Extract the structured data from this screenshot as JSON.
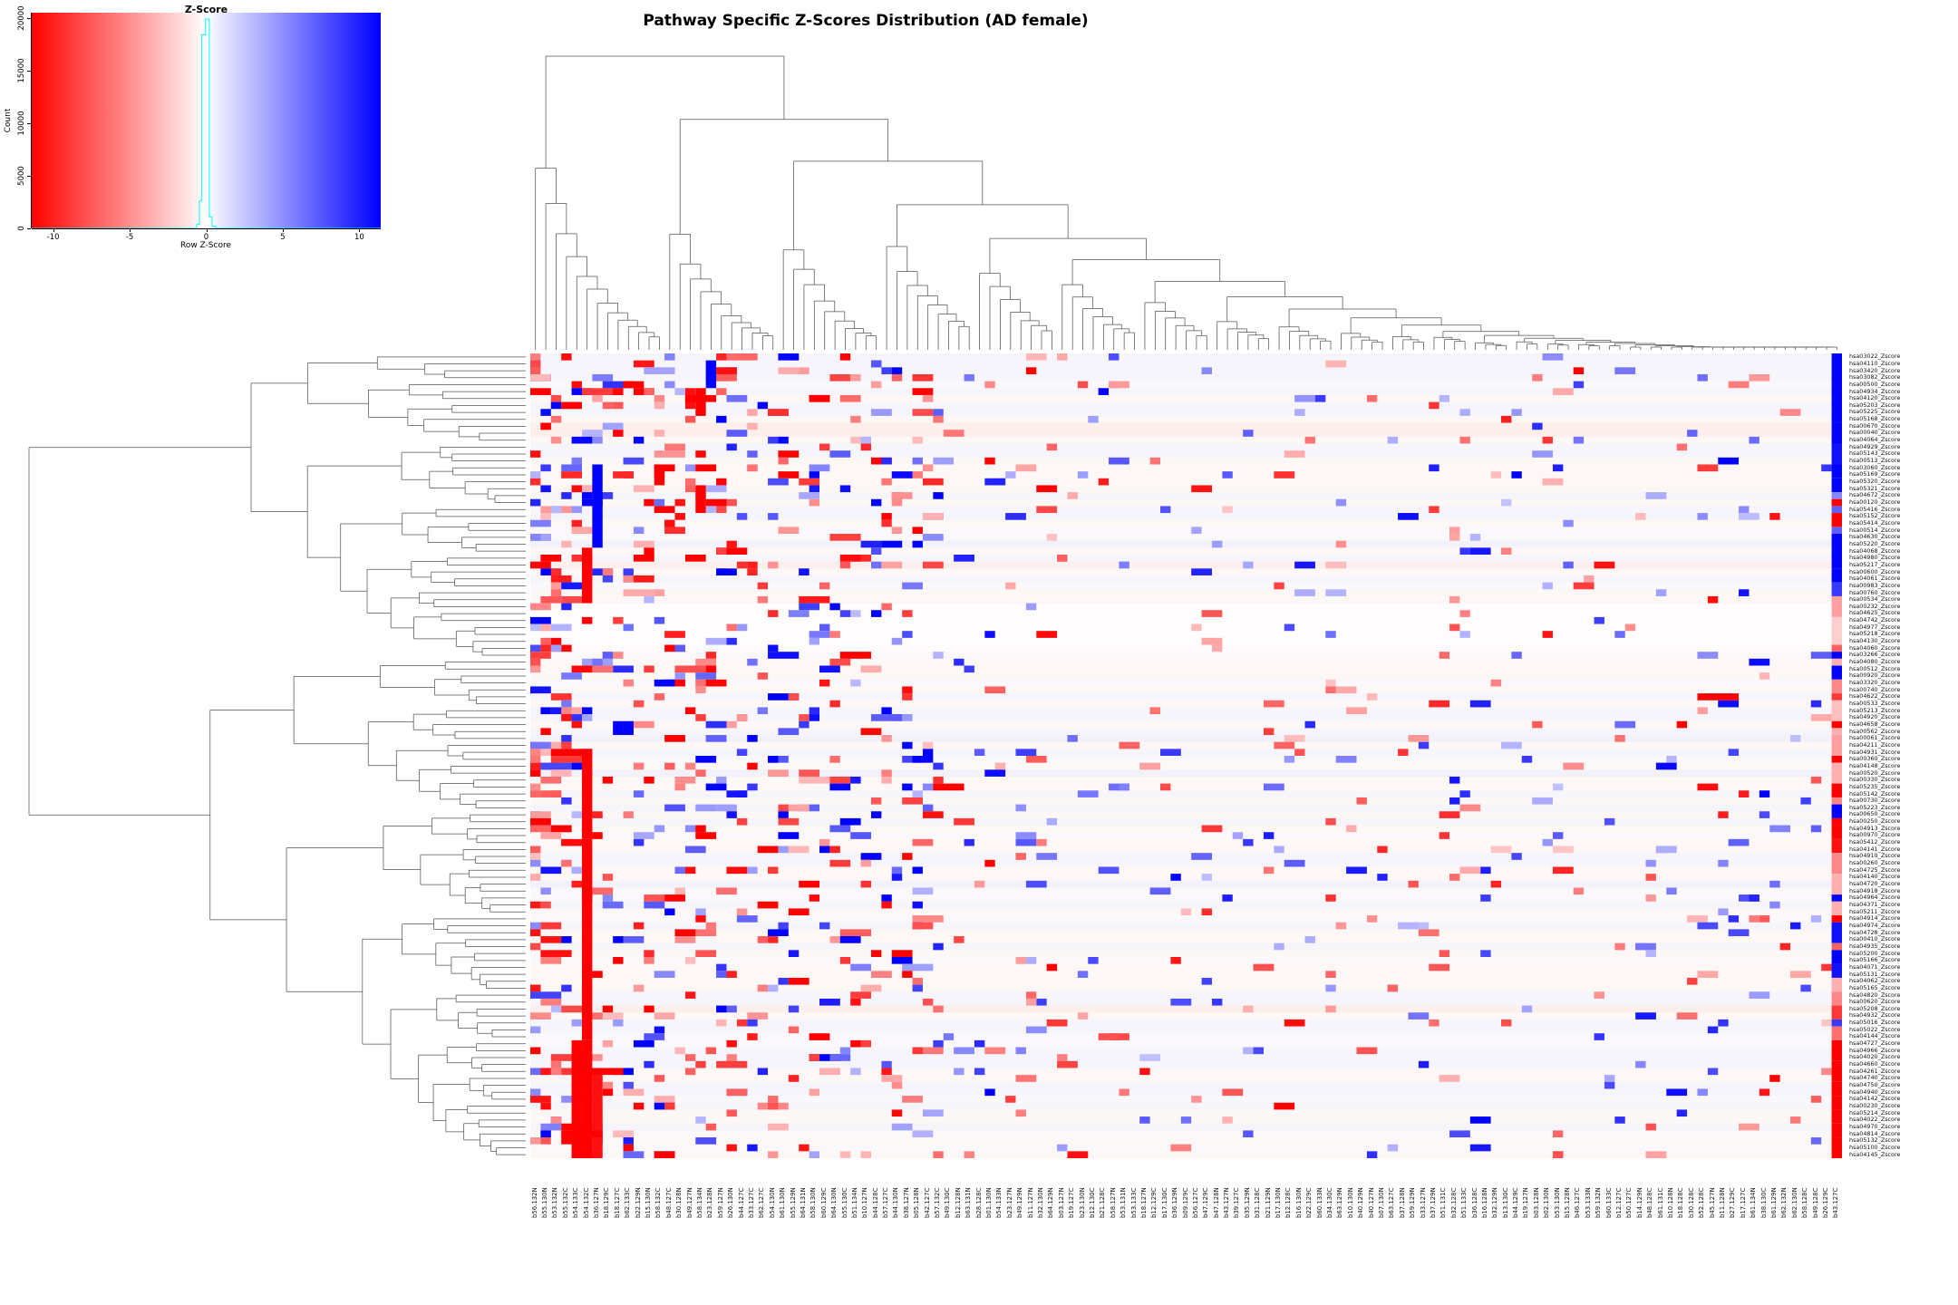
{
  "figure": {
    "title": "Pathway Specific Z-Scores Distribution (AD female)",
    "background": "#ffffff"
  },
  "color_key": {
    "title": "Z-Score",
    "xlabel": "Row Z-Score",
    "ylabel": "Count",
    "x_ticks": [
      -10,
      -5,
      0,
      5,
      10
    ],
    "y_ticks": [
      0,
      5000,
      10000,
      15000,
      20000
    ],
    "x_range": [
      -11.4,
      11.4
    ],
    "y_range": [
      0,
      20500
    ],
    "gradient_low": "#ff0000",
    "gradient_mid": "#ffffff",
    "gradient_high": "#0000ff",
    "hist_color": "#00ffff",
    "hist_steps": [
      [
        -11.4,
        0
      ],
      [
        -0.62,
        0
      ],
      [
        -0.62,
        400
      ],
      [
        -0.45,
        400
      ],
      [
        -0.45,
        2600
      ],
      [
        -0.3,
        2600
      ],
      [
        -0.3,
        18400
      ],
      [
        -0.05,
        18400
      ],
      [
        -0.05,
        19900
      ],
      [
        0.2,
        19900
      ],
      [
        0.2,
        1100
      ],
      [
        0.38,
        1100
      ],
      [
        0.38,
        200
      ],
      [
        0.62,
        200
      ],
      [
        0.62,
        0
      ],
      [
        11.4,
        0
      ]
    ]
  },
  "chart_data": {
    "type": "heatmap",
    "title": "Pathway Specific Z-Scores Distribution (AD female)",
    "zlim": [
      -11,
      11
    ],
    "colormap": {
      "low": "#ff0000",
      "mid": "#ffffff",
      "high": "#0000ff",
      "low_meaning": "negative row z-score",
      "high_meaning": "positive row z-score"
    },
    "legend_position": "top-left",
    "dendrograms": {
      "rows": "left",
      "columns": "top"
    },
    "rows": [
      "hsa03022_Zscore",
      "hsa04110_Zscore",
      "hsa03420_Zscore",
      "hsa03082_Zscore",
      "hsa00500_Zscore",
      "hsa04934_Zscore",
      "hsa04120_Zscore",
      "hsa05203_Zscore",
      "hsa05225_Zscore",
      "hsa05168_Zscore",
      "hsa00670_Zscore",
      "hsa00040_Zscore",
      "hsa04064_Zscore",
      "hsa04929_Zscore",
      "hsa05143_Zscore",
      "hsa00513_Zscore",
      "hsa03060_Zscore",
      "hsa05169_Zscore",
      "hsa05320_Zscore",
      "hsa05321_Zscore",
      "hsa04672_Zscore",
      "hsa00120_Zscore",
      "hsa05416_Zscore",
      "hsa05152_Zscore",
      "hsa05414_Zscore",
      "hsa00514_Zscore",
      "hsa04630_Zscore",
      "hsa05220_Zscore",
      "hsa04068_Zscore",
      "hsa04980_Zscore",
      "hsa05217_Zscore",
      "hsa00600_Zscore",
      "hsa04061_Zscore",
      "hsa00983_Zscore",
      "hsa00760_Zscore",
      "hsa00534_Zscore",
      "hsa00232_Zscore",
      "hsa04625_Zscore",
      "hsa04742_Zscore",
      "hsa04977_Zscore",
      "hsa05218_Zscore",
      "hsa04130_Zscore",
      "hsa04060_Zscore",
      "hsa03266_Zscore",
      "hsa04080_Zscore",
      "hsa00512_Zscore",
      "hsa00920_Zscore",
      "hsa03320_Zscore",
      "hsa00740_Zscore",
      "hsa04622_Zscore",
      "hsa00533_Zscore",
      "hsa05213_Zscore",
      "hsa04920_Zscore",
      "hsa04658_Zscore",
      "hsa00562_Zscore",
      "hsa00061_Zscore",
      "hsa04211_Zscore",
      "hsa04931_Zscore",
      "hsa00360_Zscore",
      "hsa04148_Zscore",
      "hsa00520_Zscore",
      "hsa00330_Zscore",
      "hsa05235_Zscore",
      "hsa05142_Zscore",
      "hsa00730_Zscore",
      "hsa05223_Zscore",
      "hsa00650_Zscore",
      "hsa00250_Zscore",
      "hsa04913_Zscore",
      "hsa00970_Zscore",
      "hsa05412_Zscore",
      "hsa04141_Zscore",
      "hsa04910_Zscore",
      "hsa00260_Zscore",
      "hsa04725_Zscore",
      "hsa04140_Zscore",
      "hsa04720_Zscore",
      "hsa04918_Zscore",
      "hsa04964_Zscore",
      "hsa04371_Zscore",
      "hsa05211_Zscore",
      "hsa04914_Zscore",
      "hsa04974_Zscore",
      "hsa04728_Zscore",
      "hsa00410_Zscore",
      "hsa04935_Zscore",
      "hsa05200_Zscore",
      "hsa05166_Zscore",
      "hsa04071_Zscore",
      "hsa05131_Zscore",
      "hsa04062_Zscore",
      "hsa05165_Zscore",
      "hsa04820_Zscore",
      "hsa00620_Zscore",
      "hsa05208_Zscore",
      "hsa04932_Zscore",
      "hsa05016_Zscore",
      "hsa05022_Zscore",
      "hsa04144_Zscore",
      "hsa04727_Zscore",
      "hsa04966_Zscore",
      "hsa04020_Zscore",
      "hsa04660_Zscore",
      "hsa04261_Zscore",
      "hsa04740_Zscore",
      "hsa04750_Zscore",
      "hsa04940_Zscore",
      "hsa04142_Zscore",
      "hsa00230_Zscore",
      "hsa05214_Zscore",
      "hsa04022_Zscore",
      "hsa04970_Zscore",
      "hsa04814_Zscore",
      "hsa05132_Zscore",
      "hsa05100_Zscore",
      "hsa04145_Zscore"
    ],
    "cols": [
      "b56.132N",
      "b55.130N",
      "b53.132N",
      "b55.132C",
      "b54.133C",
      "b54.132C",
      "b36.127N",
      "b18.129C",
      "b18.127C",
      "b62.133C",
      "b22.129N",
      "b15.130N",
      "b58.132C",
      "b48.127C",
      "b30.128N",
      "b49.127N",
      "b58.134N",
      "b23.128N",
      "b59.127N",
      "b26.130N",
      "b44.127C",
      "b33.127C",
      "b62.127C",
      "b54.130N",
      "b61.130N",
      "b55.129N",
      "b64.131N",
      "b58.130N",
      "b60.129C",
      "b64.130N",
      "b55.130C",
      "b51.134N",
      "b10.127N",
      "b44.128C",
      "b57.127C",
      "b44.130N",
      "b38.127N",
      "b05.128N",
      "b42.127C",
      "b57.132C",
      "b49.130C",
      "b12.128N",
      "b63.131N",
      "b28.128C",
      "b01.130N",
      "b54.133N",
      "b23.127N",
      "b49.129N",
      "b11.127N",
      "b32.130N",
      "b64.129N",
      "b03.127N",
      "b19.127C",
      "b23.130N",
      "b12.130C",
      "b21.128C",
      "b58.127N",
      "b53.131N",
      "b53.133C",
      "b18.127N",
      "b12.129C",
      "b17.130C",
      "b36.129N",
      "b09.129C",
      "b56.127C",
      "b47.129C",
      "b47.128N",
      "b43.127N",
      "b39.127C",
      "b35.129N",
      "b31.128C",
      "b21.129N",
      "b17.130N",
      "b12.128C",
      "b16.130N",
      "b22.129C",
      "b60.133N",
      "b34.130C",
      "b63.129N",
      "b10.130N",
      "b40.129N",
      "b40.127N",
      "b07.130N",
      "b63.127C",
      "b37.128N",
      "b59.129N",
      "b33.127N",
      "b37.129N",
      "b51.131C",
      "b32.128C",
      "b51.133C",
      "b36.128C",
      "b16.128N",
      "b32.129N",
      "b13.130C",
      "b44.129C",
      "b19.127N",
      "b03.128N",
      "b02.130N",
      "b53.130N",
      "b15.128N",
      "b46.127C",
      "b53.133N",
      "b59.132N",
      "b60.133C",
      "b12.127C",
      "b50.127C",
      "b14.129N",
      "b48.128C",
      "b61.131C",
      "b10.128N",
      "b18.128C",
      "b30.128C",
      "b52.128C",
      "b45.127N",
      "b11.128N",
      "b27.129C",
      "b17.127C",
      "b61.134N",
      "b38.130C",
      "b61.129N",
      "b62.132N",
      "b62.130N",
      "b58.128C",
      "b49.128C",
      "b26.129C",
      "b43.127C"
    ],
    "notable_features": [
      "strong positive (dark blue) vertical bar in column b36.127N spanning rows hsa03060..hsa04068",
      "strong negative (red) vertical stripe in column b54.132C through the lower half of the matrix",
      "last column b43.127C is strongly positive (blue) for the top row cluster and strongly negative (red) for the bottom rows",
      "matrix is mostly near-zero (very pale) with sparse saturated cells, denser in the leftmost ~35 columns",
      "row dendrogram splits into a top cluster (rows 1-44) and a larger bottom cluster",
      "column dendrogram has tall joins on the far left decaying to near-baseline joins on the right",
      "color-key histogram is sharply peaked at z = 0 with count near 20000"
    ],
    "vblocks": [
      [
        7,
        17,
        28,
        9
      ],
      [
        6,
        29,
        36,
        -3.5
      ],
      [
        6,
        58,
        70,
        -5
      ],
      [
        6,
        71,
        84,
        -7
      ],
      [
        6,
        85,
        99,
        -5.5
      ],
      [
        6,
        100,
        116,
        -6.5
      ],
      [
        5,
        100,
        116,
        -3.5
      ],
      [
        7,
        104,
        116,
        -3
      ],
      [
        17,
        6,
        9,
        -5
      ],
      [
        16,
        6,
        8,
        -3
      ],
      [
        18,
        2,
        5,
        4
      ],
      [
        9,
        54,
        55,
        8
      ],
      [
        10,
        54,
        55,
        7
      ],
      [
        17,
        20,
        23,
        -4
      ],
      [
        13,
        17,
        19,
        -4
      ]
    ],
    "hblocks": [
      [
        7,
        16,
        18,
        -4
      ],
      [
        50,
        114,
        117,
        -4.5
      ],
      [
        63,
        40,
        42,
        -5
      ],
      [
        104,
        6,
        9,
        -5.5
      ],
      [
        113,
        4,
        7,
        -6
      ],
      [
        58,
        3,
        6,
        -4
      ],
      [
        30,
        2,
        3,
        -5
      ],
      [
        87,
        2,
        4,
        -3
      ],
      [
        44,
        24,
        26,
        3
      ]
    ],
    "last_col_segments": [
      [
        1,
        10,
        9
      ],
      [
        11,
        13,
        5
      ],
      [
        14,
        16,
        3
      ],
      [
        17,
        18,
        6.5
      ],
      [
        19,
        20,
        3.5
      ],
      [
        21,
        21,
        1.5
      ],
      [
        22,
        22,
        -4.5
      ],
      [
        23,
        23,
        2
      ],
      [
        24,
        25,
        -6
      ],
      [
        26,
        26,
        2
      ],
      [
        27,
        31,
        8
      ],
      [
        32,
        33,
        4.5
      ],
      [
        34,
        35,
        2.5
      ],
      [
        36,
        38,
        -1.2
      ],
      [
        39,
        42,
        -0.6
      ],
      [
        43,
        43,
        -2
      ],
      [
        44,
        44,
        3.5
      ],
      [
        45,
        45,
        -1
      ],
      [
        46,
        47,
        4
      ],
      [
        48,
        49,
        -1.5
      ],
      [
        50,
        50,
        -2.5
      ],
      [
        51,
        53,
        -0.8
      ],
      [
        54,
        54,
        -4.5
      ],
      [
        55,
        55,
        -1
      ],
      [
        56,
        58,
        -1.2
      ],
      [
        59,
        59,
        -3.5
      ],
      [
        60,
        62,
        -1
      ],
      [
        63,
        64,
        -5
      ],
      [
        65,
        65,
        -1.5
      ],
      [
        66,
        67,
        4
      ],
      [
        68,
        68,
        -4
      ],
      [
        69,
        70,
        -5.5
      ],
      [
        71,
        72,
        -3
      ],
      [
        73,
        75,
        -1.5
      ],
      [
        76,
        78,
        -1
      ],
      [
        79,
        79,
        3.5
      ],
      [
        80,
        81,
        -1
      ],
      [
        82,
        82,
        -3.5
      ],
      [
        83,
        85,
        3
      ],
      [
        86,
        86,
        -2
      ],
      [
        87,
        88,
        7
      ],
      [
        89,
        90,
        3
      ],
      [
        91,
        92,
        -1
      ],
      [
        93,
        94,
        -1.5
      ],
      [
        95,
        96,
        -2.5
      ],
      [
        97,
        97,
        2.5
      ],
      [
        98,
        99,
        -1.8
      ],
      [
        100,
        102,
        -6.5
      ],
      [
        103,
        105,
        -7.5
      ],
      [
        106,
        107,
        -6
      ],
      [
        108,
        109,
        -7
      ],
      [
        110,
        111,
        -6.5
      ],
      [
        112,
        113,
        -7.5
      ],
      [
        114,
        116,
        -6.8
      ]
    ],
    "render": {
      "seed": 11,
      "left_region_cols": 40,
      "row_tint_pink": "#fdf7f5",
      "row_tint_lavender": "#f6f5fb",
      "row_tint_neutral": "#faf8fa",
      "pink_band_rows": [
        11,
        12,
        31,
        95
      ],
      "white_rows": [
        37,
        38,
        39,
        40,
        41,
        42,
        43
      ],
      "lavender_rows": [
        28,
        56,
        61,
        77
      ]
    }
  }
}
